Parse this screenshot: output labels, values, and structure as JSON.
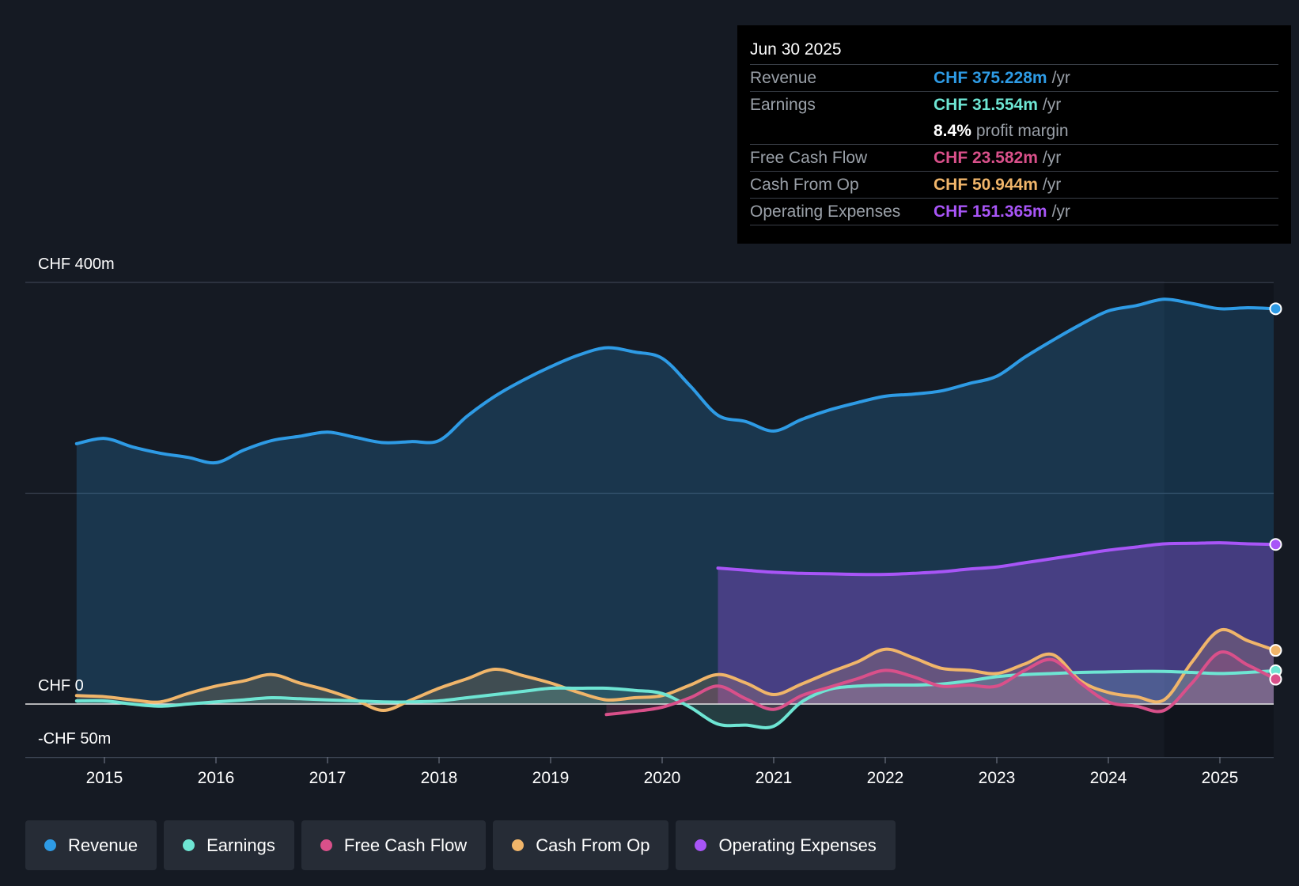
{
  "tooltip": {
    "date": "Jun 30 2025",
    "rows": [
      {
        "label": "Revenue",
        "value": "CHF 375.228m",
        "unit": "/yr",
        "color": "#2e9be5"
      },
      {
        "label": "Earnings",
        "value": "CHF 31.554m",
        "unit": "/yr",
        "color": "#6ee5d3"
      },
      {
        "label": "",
        "value": "8.4%",
        "unit": "profit margin",
        "color": "#ffffff"
      },
      {
        "label": "Free Cash Flow",
        "value": "CHF 23.582m",
        "unit": "/yr",
        "color": "#d9508a"
      },
      {
        "label": "Cash From Op",
        "value": "CHF 50.944m",
        "unit": "/yr",
        "color": "#f0b56a"
      },
      {
        "label": "Operating Expenses",
        "value": "CHF 151.365m",
        "unit": "/yr",
        "color": "#a855f7"
      }
    ]
  },
  "legend": [
    {
      "label": "Revenue",
      "color": "#2e9be5"
    },
    {
      "label": "Earnings",
      "color": "#6ee5d3"
    },
    {
      "label": "Free Cash Flow",
      "color": "#d9508a"
    },
    {
      "label": "Cash From Op",
      "color": "#f0b56a"
    },
    {
      "label": "Operating Expenses",
      "color": "#a855f7"
    }
  ],
  "chart_data": {
    "type": "area",
    "title": "",
    "xlabel": "",
    "ylabel": "",
    "ylim": [
      -50,
      400
    ],
    "xlim": [
      2014.75,
      2025.5
    ],
    "y_labels": {
      "top": "CHF 400m",
      "zero": "CHF 0",
      "bottom": "-CHF 50m"
    },
    "x_ticks": [
      "2015",
      "2016",
      "2017",
      "2018",
      "2019",
      "2020",
      "2021",
      "2022",
      "2023",
      "2024",
      "2025"
    ],
    "x_tick_values": [
      2015,
      2016,
      2017,
      2018,
      2019,
      2020,
      2021,
      2022,
      2023,
      2024,
      2025
    ],
    "forecast_start": 2024.5,
    "series": [
      {
        "name": "Revenue",
        "color": "#2e9be5",
        "fill": true,
        "x": [
          2014.75,
          2015.0,
          2015.25,
          2015.5,
          2015.75,
          2016.0,
          2016.25,
          2016.5,
          2016.75,
          2017.0,
          2017.25,
          2017.5,
          2017.75,
          2018.0,
          2018.25,
          2018.5,
          2018.75,
          2019.0,
          2019.25,
          2019.5,
          2019.75,
          2020.0,
          2020.25,
          2020.5,
          2020.75,
          2021.0,
          2021.25,
          2021.5,
          2021.75,
          2022.0,
          2022.25,
          2022.5,
          2022.75,
          2023.0,
          2023.25,
          2023.5,
          2023.75,
          2024.0,
          2024.25,
          2024.5,
          2024.75,
          2025.0,
          2025.25,
          2025.5
        ],
        "values": [
          247,
          252,
          244,
          238,
          234,
          229,
          241,
          250,
          254,
          258,
          253,
          248,
          249,
          250,
          273,
          292,
          307,
          320,
          331,
          338,
          334,
          328,
          302,
          274,
          268,
          259,
          270,
          279,
          286,
          292,
          294,
          297,
          304,
          311,
          329,
          345,
          360,
          373,
          378,
          384,
          380,
          375,
          376,
          375
        ]
      },
      {
        "name": "Operating Expenses",
        "color": "#a855f7",
        "fill": true,
        "x": [
          2020.5,
          2020.75,
          2021.0,
          2021.25,
          2021.5,
          2021.75,
          2022.0,
          2022.25,
          2022.5,
          2022.75,
          2023.0,
          2023.25,
          2023.5,
          2023.75,
          2024.0,
          2024.25,
          2024.5,
          2024.75,
          2025.0,
          2025.25,
          2025.5
        ],
        "values": [
          129,
          127,
          125,
          124,
          123.5,
          123,
          123,
          124,
          125.5,
          128,
          130,
          134,
          138,
          142,
          146,
          149,
          152,
          152.5,
          153,
          152,
          151.4
        ]
      },
      {
        "name": "Cash From Op",
        "color": "#f0b56a",
        "fill": true,
        "x": [
          2014.75,
          2015.0,
          2015.25,
          2015.5,
          2015.75,
          2016.0,
          2016.25,
          2016.5,
          2016.75,
          2017.0,
          2017.25,
          2017.5,
          2017.75,
          2018.0,
          2018.25,
          2018.5,
          2018.75,
          2019.0,
          2019.25,
          2019.5,
          2019.75,
          2020.0,
          2020.25,
          2020.5,
          2020.75,
          2021.0,
          2021.25,
          2021.5,
          2021.75,
          2022.0,
          2022.25,
          2022.5,
          2022.75,
          2023.0,
          2023.25,
          2023.5,
          2023.75,
          2024.0,
          2024.25,
          2024.5,
          2024.75,
          2025.0,
          2025.25,
          2025.5
        ],
        "values": [
          8,
          7,
          4,
          2,
          10,
          17,
          22,
          28,
          20,
          13,
          4,
          -6,
          4,
          15,
          24,
          33,
          27,
          20,
          11,
          4,
          6,
          8,
          18,
          28,
          20,
          9,
          19,
          30,
          40,
          52,
          44,
          34,
          32,
          29,
          38,
          47,
          22,
          11,
          7,
          4,
          40,
          70,
          60,
          50.9
        ]
      },
      {
        "name": "Earnings",
        "color": "#6ee5d3",
        "fill": true,
        "x": [
          2014.75,
          2015.0,
          2015.25,
          2015.5,
          2015.75,
          2016.0,
          2016.25,
          2016.5,
          2016.75,
          2017.0,
          2017.25,
          2017.5,
          2017.75,
          2018.0,
          2018.25,
          2018.5,
          2018.75,
          2019.0,
          2019.25,
          2019.5,
          2019.75,
          2020.0,
          2020.25,
          2020.5,
          2020.75,
          2021.0,
          2021.25,
          2021.5,
          2021.75,
          2022.0,
          2022.25,
          2022.5,
          2022.75,
          2023.0,
          2023.25,
          2023.5,
          2023.75,
          2024.0,
          2024.25,
          2024.5,
          2024.75,
          2025.0,
          2025.25,
          2025.5
        ],
        "values": [
          3,
          3,
          0,
          -2,
          0,
          2,
          4,
          6,
          5,
          4,
          3,
          2,
          2,
          3,
          6,
          9,
          12,
          15,
          15,
          15,
          13,
          10,
          -3,
          -19,
          -20,
          -21,
          2,
          14,
          17,
          18,
          18,
          19,
          22,
          26,
          28,
          29,
          30,
          30.5,
          31,
          31,
          30,
          29,
          30,
          31.6
        ]
      },
      {
        "name": "Free Cash Flow",
        "color": "#d9508a",
        "fill": true,
        "x": [
          2019.5,
          2019.75,
          2020.0,
          2020.25,
          2020.5,
          2020.75,
          2021.0,
          2021.25,
          2021.5,
          2021.75,
          2022.0,
          2022.25,
          2022.5,
          2022.75,
          2023.0,
          2023.25,
          2023.5,
          2023.75,
          2024.0,
          2024.25,
          2024.5,
          2024.75,
          2025.0,
          2025.25,
          2025.5
        ],
        "values": [
          -10,
          -7,
          -3,
          6,
          17,
          5,
          -5,
          8,
          16,
          24,
          32,
          26,
          17,
          18,
          17,
          32,
          42,
          20,
          2,
          -2,
          -6,
          20,
          49,
          37,
          23.6
        ]
      }
    ]
  }
}
